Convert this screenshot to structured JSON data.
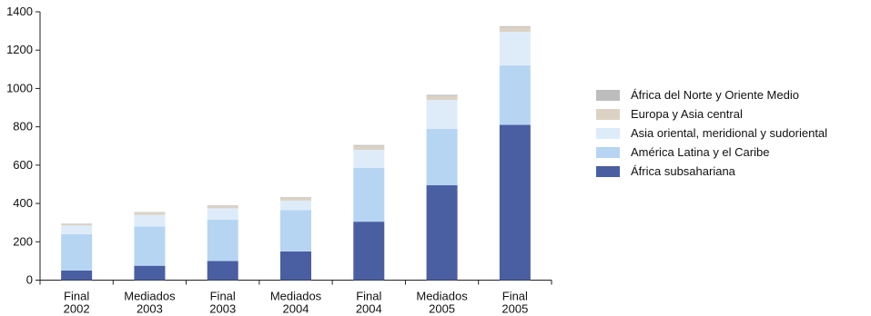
{
  "chart_data": {
    "type": "bar",
    "stacked": true,
    "title": "",
    "xlabel": "",
    "ylabel": "",
    "ylim": [
      0,
      1400
    ],
    "yticks": [
      0,
      200,
      400,
      600,
      800,
      1000,
      1200,
      1400
    ],
    "grid": false,
    "legend_position": "right",
    "categories": [
      [
        "Final",
        "2002"
      ],
      [
        "Mediados",
        "2003"
      ],
      [
        "Final",
        "2003"
      ],
      [
        "Mediados",
        "2004"
      ],
      [
        "Final",
        "2004"
      ],
      [
        "Mediados",
        "2005"
      ],
      [
        "Final",
        "2005"
      ]
    ],
    "series": [
      {
        "name": "África subsahariana",
        "color": "#4a5ea2",
        "values": [
          50,
          75,
          100,
          150,
          305,
          495,
          810
        ]
      },
      {
        "name": "América Latina y el Caribe",
        "color": "#b6d5f3",
        "values": [
          190,
          205,
          215,
          215,
          280,
          295,
          310
        ]
      },
      {
        "name": "Asia oriental, meridional y sudoriental",
        "color": "#deecfa",
        "values": [
          45,
          60,
          60,
          50,
          95,
          150,
          175
        ]
      },
      {
        "name": "Europa y Asia central",
        "color": "#dcd2c4",
        "values": [
          8,
          12,
          12,
          15,
          20,
          22,
          25
        ]
      },
      {
        "name": "África del Norte y Oriente Medio",
        "color": "#bdbdbd",
        "values": [
          2,
          3,
          3,
          3,
          5,
          5,
          5
        ]
      }
    ]
  }
}
